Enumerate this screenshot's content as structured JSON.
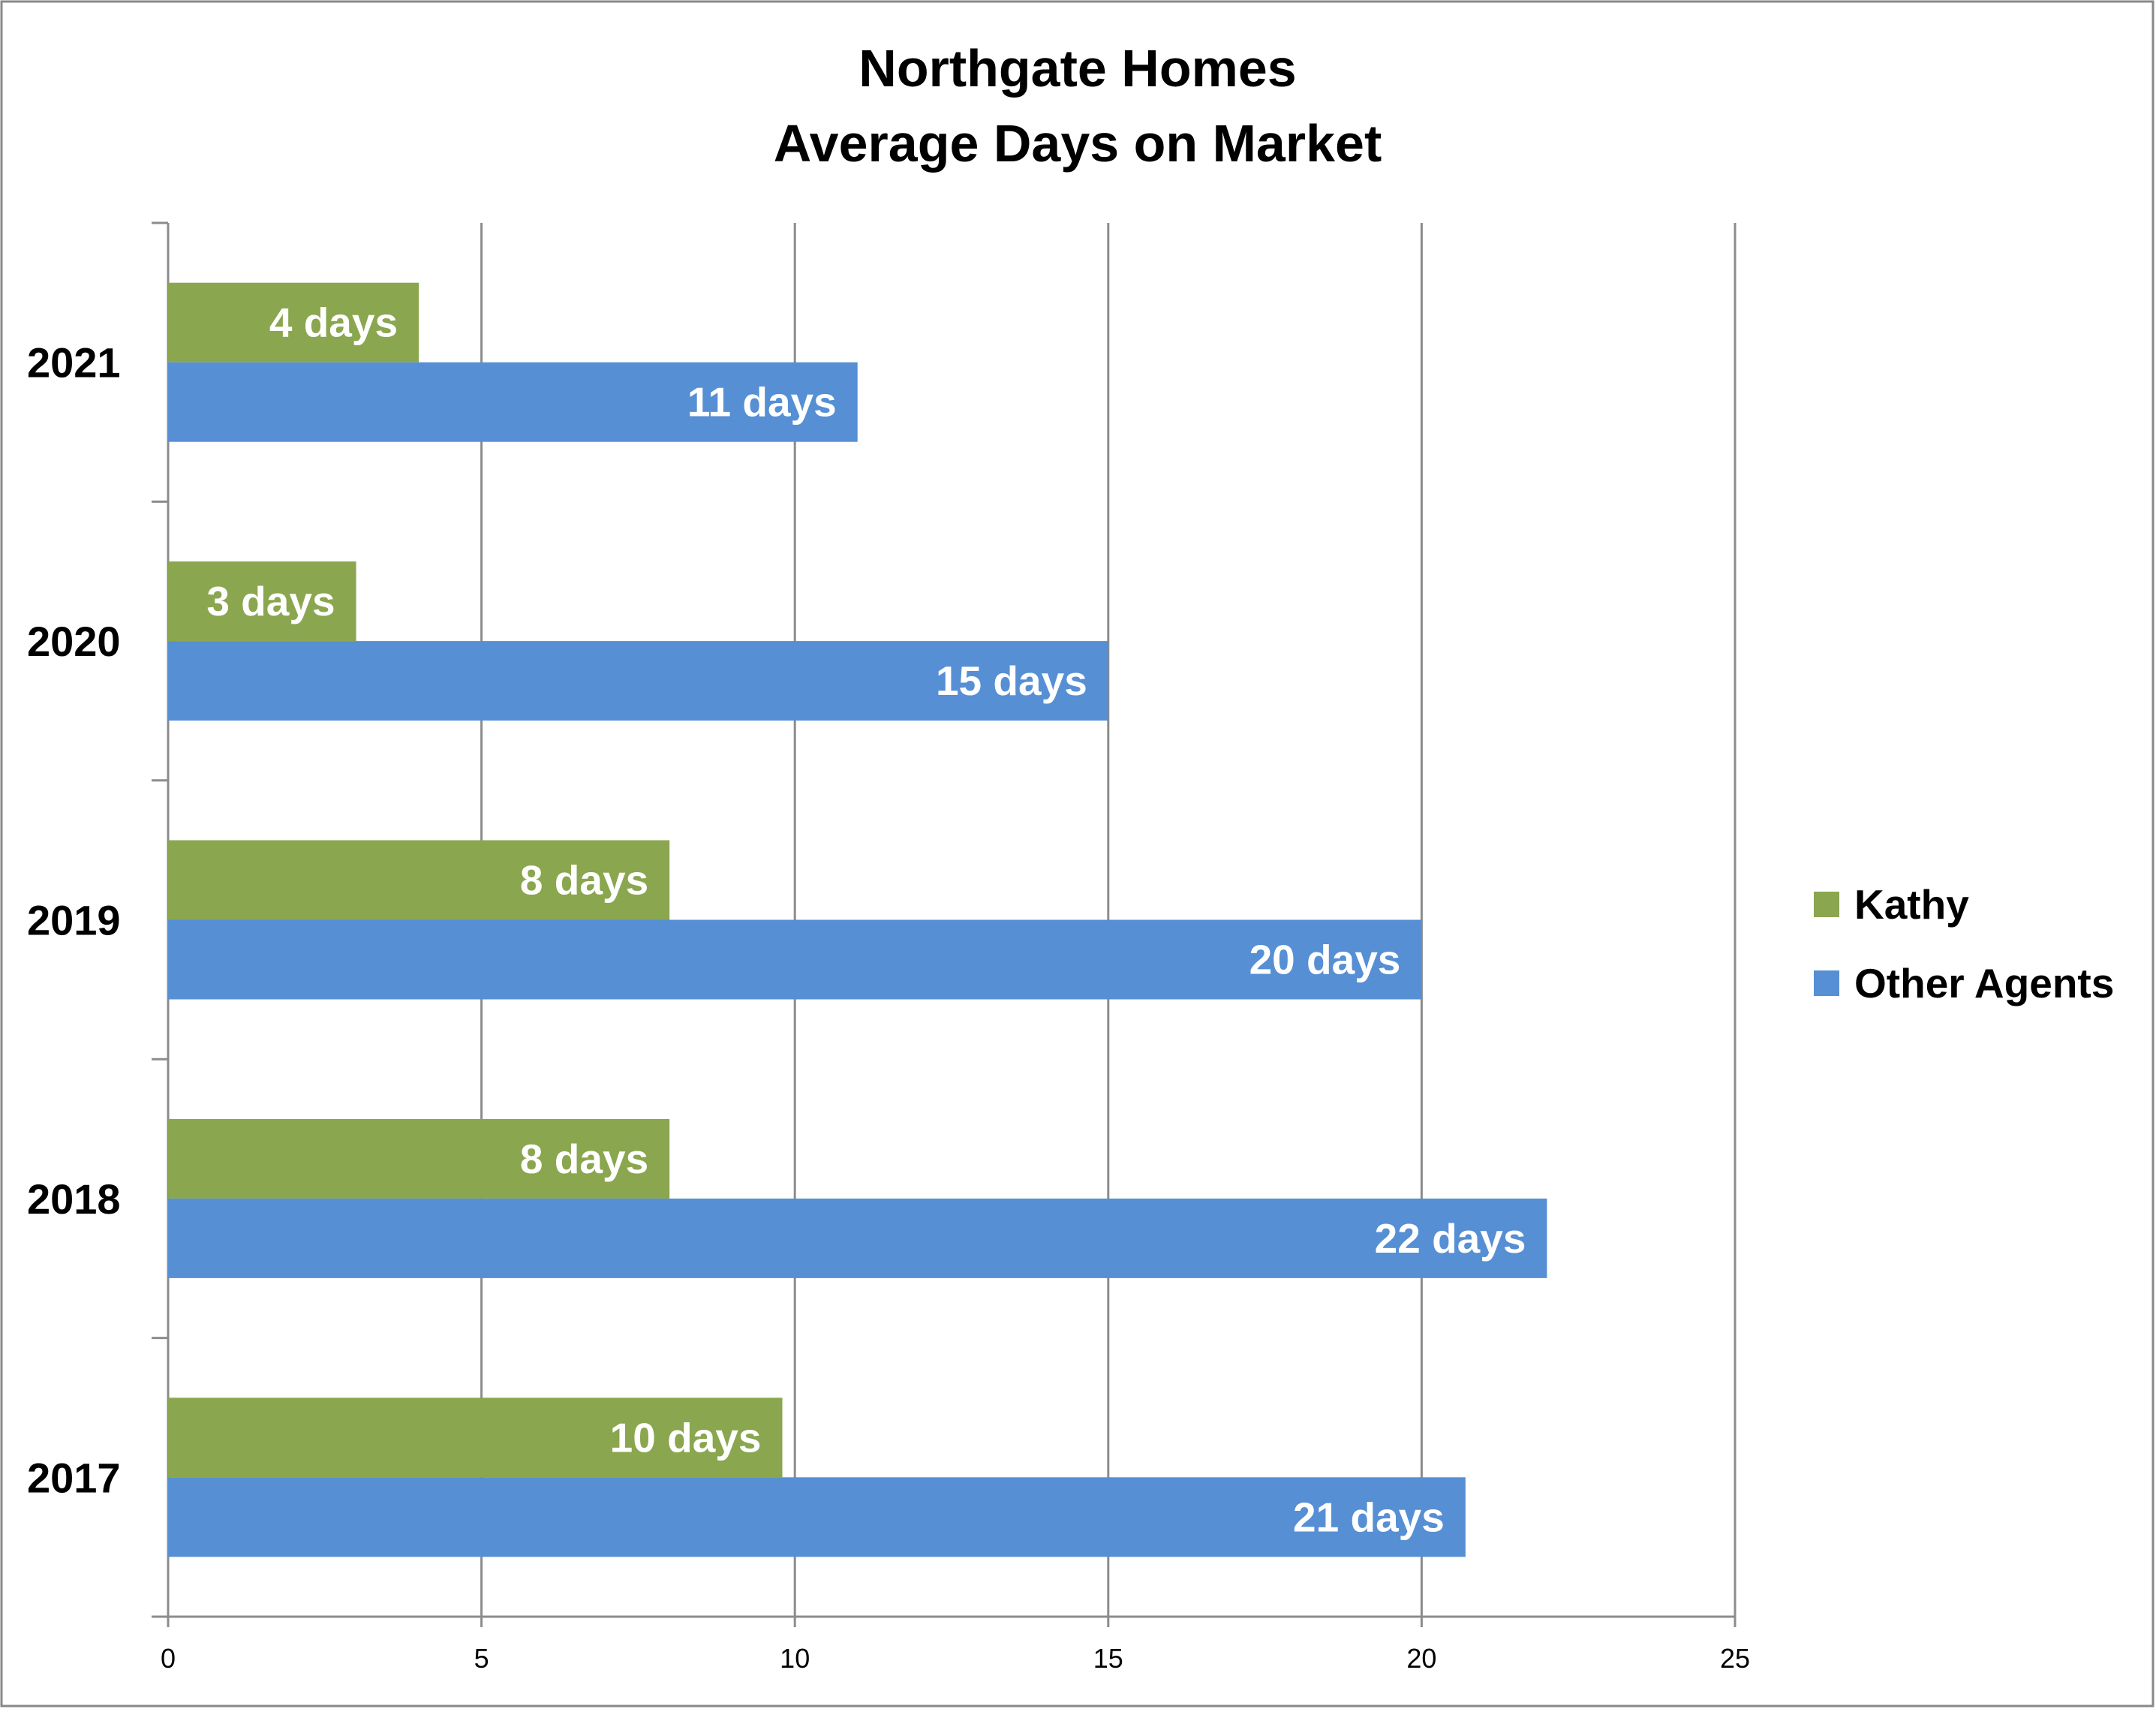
{
  "chart_data": {
    "type": "bar",
    "orientation": "horizontal",
    "title": "Northgate Homes",
    "subtitle": "Average Days on Market",
    "categories": [
      "2021",
      "2020",
      "2019",
      "2018",
      "2017"
    ],
    "series": [
      {
        "name": "Kathy",
        "color": "#8aa64e",
        "values": [
          4,
          3,
          8,
          8,
          9.8
        ],
        "labels": [
          "4 days",
          "3 days",
          "8 days",
          "8 days",
          "10 days"
        ]
      },
      {
        "name": "Other Agents",
        "color": "#568fd4",
        "values": [
          11,
          15,
          20,
          22,
          20.7
        ],
        "labels": [
          "11 days",
          "15 days",
          "20 days",
          "22 days",
          "21 days"
        ]
      }
    ],
    "xlim": [
      0,
      25
    ],
    "xticks": [
      "0",
      "5",
      "10",
      "15",
      "20",
      "25"
    ],
    "grid": true,
    "legend_position": "right"
  }
}
